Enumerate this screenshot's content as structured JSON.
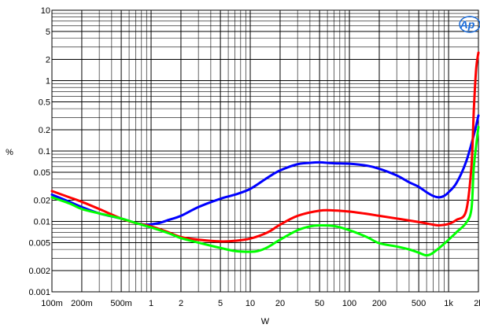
{
  "chart_data": {
    "type": "line",
    "xlabel": "W",
    "ylabel": "%",
    "x_scale": "log",
    "y_scale": "log",
    "xlim": [
      0.1,
      2000
    ],
    "ylim": [
      0.001,
      10
    ],
    "grid": true,
    "legend": "none",
    "x_ticks": [
      {
        "value": 0.1,
        "label": "100m"
      },
      {
        "value": 0.2,
        "label": "200m"
      },
      {
        "value": 0.5,
        "label": "500m"
      },
      {
        "value": 1,
        "label": "1"
      },
      {
        "value": 2,
        "label": "2"
      },
      {
        "value": 5,
        "label": "5"
      },
      {
        "value": 10,
        "label": "10"
      },
      {
        "value": 20,
        "label": "20"
      },
      {
        "value": 50,
        "label": "50"
      },
      {
        "value": 100,
        "label": "100"
      },
      {
        "value": 200,
        "label": "200"
      },
      {
        "value": 500,
        "label": "500"
      },
      {
        "value": 1000,
        "label": "1k"
      },
      {
        "value": 2000,
        "label": "2k"
      }
    ],
    "y_ticks": [
      {
        "value": 10,
        "label": "10"
      },
      {
        "value": 5,
        "label": "5"
      },
      {
        "value": 2,
        "label": "2"
      },
      {
        "value": 1,
        "label": "1"
      },
      {
        "value": 0.5,
        "label": "0.5"
      },
      {
        "value": 0.2,
        "label": "0.2"
      },
      {
        "value": 0.1,
        "label": "0.1"
      },
      {
        "value": 0.05,
        "label": "0.05"
      },
      {
        "value": 0.02,
        "label": "0.02"
      },
      {
        "value": 0.01,
        "label": "0.01"
      },
      {
        "value": 0.005,
        "label": "0.005"
      },
      {
        "value": 0.002,
        "label": "0.002"
      },
      {
        "value": 0.001,
        "label": "0.001"
      }
    ],
    "series": [
      {
        "color": "#0000ff",
        "x": [
          0.1,
          0.15,
          0.2,
          0.3,
          0.5,
          0.7,
          0.9,
          1.2,
          1.5,
          2,
          3,
          5,
          7,
          10,
          15,
          20,
          30,
          40,
          50,
          70,
          100,
          150,
          200,
          300,
          400,
          500,
          600,
          700,
          800,
          900,
          1000,
          1200,
          1500,
          1800,
          2000
        ],
        "y": [
          0.024,
          0.019,
          0.016,
          0.013,
          0.011,
          0.0095,
          0.009,
          0.0095,
          0.0105,
          0.012,
          0.016,
          0.021,
          0.024,
          0.029,
          0.042,
          0.053,
          0.065,
          0.068,
          0.069,
          0.067,
          0.066,
          0.062,
          0.056,
          0.045,
          0.036,
          0.031,
          0.026,
          0.023,
          0.022,
          0.023,
          0.026,
          0.035,
          0.07,
          0.17,
          0.32
        ]
      },
      {
        "color": "#ff0000",
        "x": [
          0.1,
          0.15,
          0.2,
          0.3,
          0.5,
          0.7,
          1,
          1.5,
          2,
          3,
          5,
          7,
          10,
          15,
          20,
          30,
          50,
          70,
          100,
          150,
          200,
          300,
          500,
          700,
          800,
          1000,
          1200,
          1500,
          1700,
          1800,
          1900,
          2000
        ],
        "y": [
          0.027,
          0.022,
          0.019,
          0.015,
          0.011,
          0.0095,
          0.0085,
          0.007,
          0.006,
          0.0055,
          0.0052,
          0.0053,
          0.0057,
          0.007,
          0.009,
          0.012,
          0.0142,
          0.0143,
          0.0138,
          0.0128,
          0.012,
          0.011,
          0.0098,
          0.009,
          0.0088,
          0.0092,
          0.0105,
          0.014,
          0.06,
          0.4,
          1.5,
          2.5
        ]
      },
      {
        "color": "#00ff00",
        "x": [
          0.1,
          0.15,
          0.2,
          0.3,
          0.5,
          0.7,
          1,
          1.5,
          2,
          3,
          5,
          7,
          10,
          12,
          15,
          20,
          30,
          40,
          50,
          70,
          100,
          150,
          200,
          300,
          400,
          500,
          600,
          700,
          900,
          1200,
          1500,
          1700,
          1800,
          2000
        ],
        "y": [
          0.022,
          0.018,
          0.015,
          0.013,
          0.011,
          0.0095,
          0.0082,
          0.0068,
          0.0058,
          0.005,
          0.0042,
          0.0038,
          0.0037,
          0.0038,
          0.0043,
          0.0055,
          0.0075,
          0.0085,
          0.0088,
          0.0086,
          0.0075,
          0.006,
          0.0049,
          0.0044,
          0.004,
          0.0036,
          0.0033,
          0.0036,
          0.0048,
          0.007,
          0.0095,
          0.015,
          0.06,
          0.22
        ]
      }
    ]
  },
  "logo": {
    "text": "Ap"
  }
}
